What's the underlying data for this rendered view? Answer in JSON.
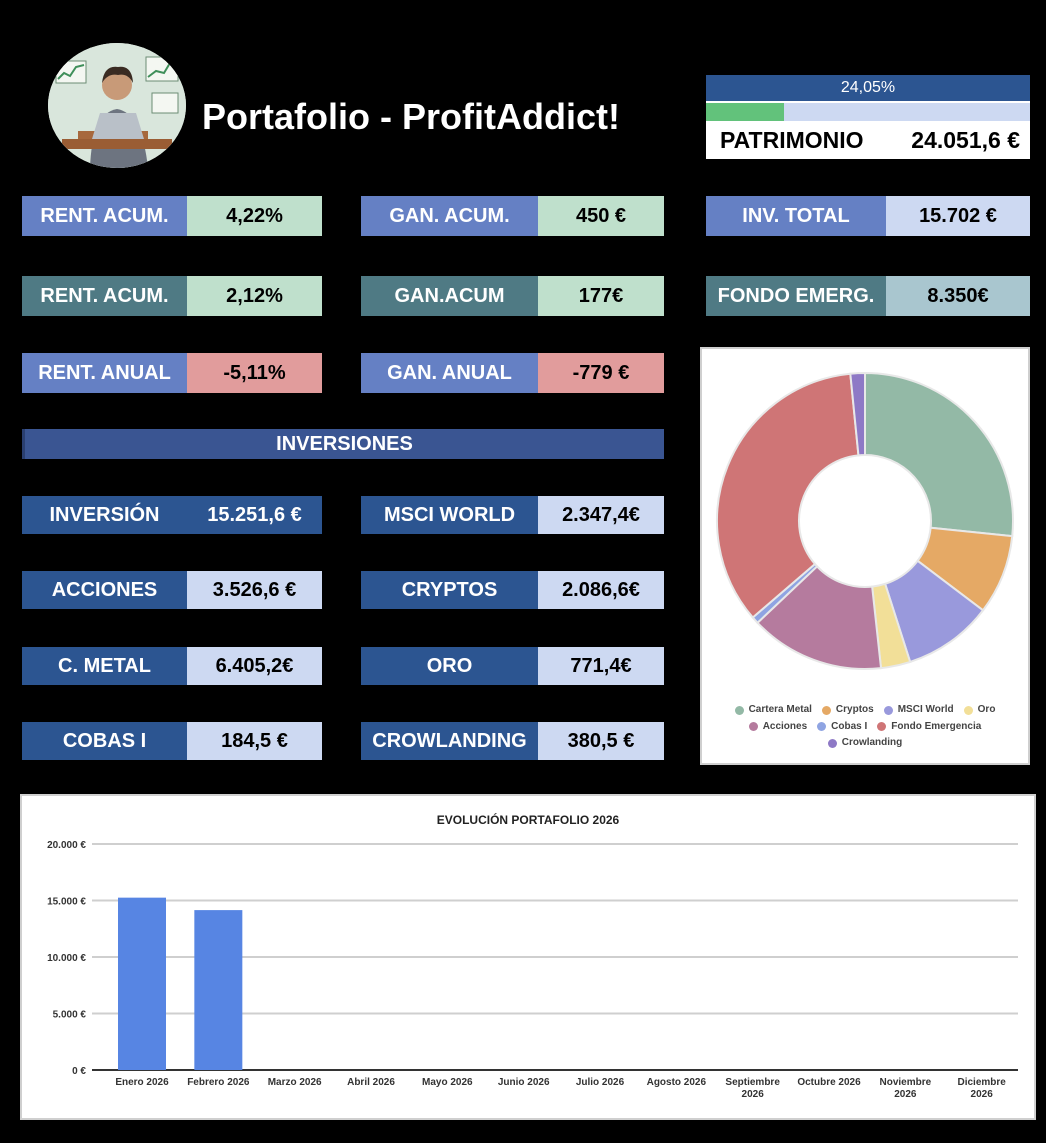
{
  "header": {
    "title": "Portafolio - ProfitAddict!",
    "progress_label": "24,05%",
    "progress_fraction": 0.2405,
    "patrimonio_label": "PATRIMONIO",
    "patrimonio_value": "24.051,6 €"
  },
  "kpis": {
    "row1": [
      {
        "label": "RENT. ACUM.",
        "value": "4,22%"
      },
      {
        "label": "GAN. ACUM.",
        "value": "450 €"
      },
      {
        "label": "INV. TOTAL",
        "value": "15.702 €"
      }
    ],
    "row2": [
      {
        "label": "RENT. ACUM.",
        "value": "2,12%"
      },
      {
        "label": "GAN.ACUM",
        "value": "177€"
      },
      {
        "label": "FONDO EMERG.",
        "value": "8.350€"
      }
    ],
    "row3": [
      {
        "label": "RENT. ANUAL",
        "value": "-5,11%"
      },
      {
        "label": "GAN. ANUAL",
        "value": "-779 €"
      }
    ]
  },
  "inversiones": {
    "title": "INVERSIONES",
    "items": [
      {
        "label": "INVERSIÓN",
        "value": "15.251,6 €"
      },
      {
        "label": "MSCI WORLD",
        "value": "2.347,4€"
      },
      {
        "label": "ACCIONES",
        "value": "3.526,6 €"
      },
      {
        "label": "CRYPTOS",
        "value": "2.086,6€"
      },
      {
        "label": "C. METAL",
        "value": "6.405,2€"
      },
      {
        "label": "ORO",
        "value": "771,4€"
      },
      {
        "label": "COBAS I",
        "value": "184,5 €"
      },
      {
        "label": "CROWLANDING",
        "value": "380,5 €"
      }
    ]
  },
  "chart_data": [
    {
      "type": "pie",
      "title": "",
      "donut": true,
      "categories": [
        "Cartera Metal",
        "Cryptos",
        "MSCI World",
        "Oro",
        "Acciones",
        "Cobas I",
        "Fondo Emergencia",
        "Crowlanding"
      ],
      "values": [
        6405.2,
        2086.6,
        2347.4,
        771.4,
        3526.6,
        184.5,
        8350,
        380.5
      ],
      "colors": [
        "#93b9a6",
        "#e5a965",
        "#9999dc",
        "#f2df98",
        "#b57b9e",
        "#8fa4e2",
        "#cf7576",
        "#8e79c6"
      ],
      "legend_position": "bottom"
    },
    {
      "type": "bar",
      "title": "EVOLUCIÓN PORTAFOLIO 2026",
      "categories": [
        "Enero 2026",
        "Febrero 2026",
        "Marzo 2026",
        "Abril 2026",
        "Mayo 2026",
        "Junio 2026",
        "Julio 2026",
        "Agosto 2026",
        "Septiembre 2026",
        "Octubre 2026",
        "Noviembre 2026",
        "Diciembre 2026"
      ],
      "values": [
        15251.6,
        14150,
        0,
        0,
        0,
        0,
        0,
        0,
        0,
        0,
        0,
        0
      ],
      "ylim": [
        0,
        20000
      ],
      "yticks": [
        "0 €",
        "5.000 €",
        "10.000 €",
        "15.000 €",
        "20.000 €"
      ],
      "color": "#5785e3",
      "grid": true
    }
  ]
}
